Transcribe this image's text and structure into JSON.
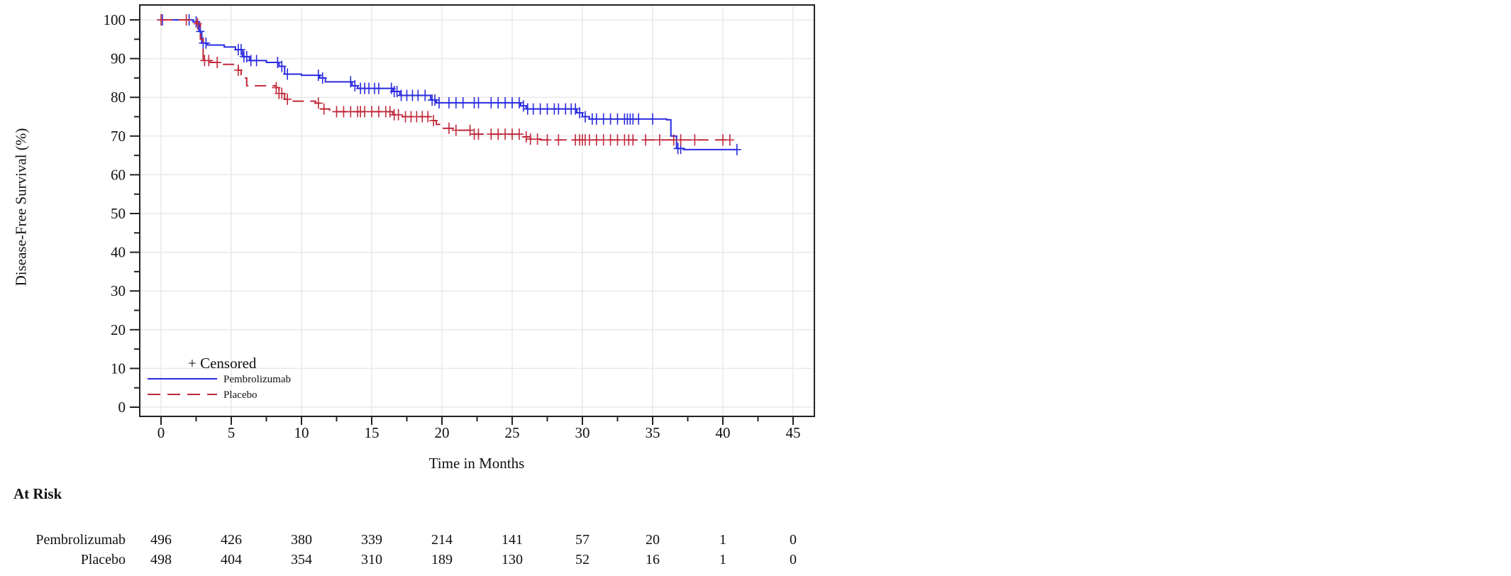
{
  "chart_data": {
    "type": "line",
    "subtype": "kaplan-meier",
    "title": "",
    "xlabel": "Time in Months",
    "ylabel": "Disease-Free Survival (%)",
    "xlim": [
      0,
      45
    ],
    "ylim": [
      0,
      100
    ],
    "x_ticks": [
      "0",
      "5",
      "10",
      "15",
      "20",
      "25",
      "30",
      "35",
      "40",
      "45"
    ],
    "y_ticks": [
      "0",
      "10",
      "20",
      "30",
      "40",
      "50",
      "60",
      "70",
      "80",
      "90",
      "100"
    ],
    "grid": true,
    "legend": {
      "position": "bottom-left",
      "censored_label": "+ Censored"
    },
    "series": [
      {
        "name": "Pembrolizumab",
        "color": "#2a2ae0",
        "style": "solid",
        "steps": [
          [
            0,
            100
          ],
          [
            2.3,
            99.5
          ],
          [
            2.7,
            97
          ],
          [
            2.9,
            94
          ],
          [
            3.3,
            93.5
          ],
          [
            4.5,
            93
          ],
          [
            5.3,
            92.3
          ],
          [
            5.8,
            90.5
          ],
          [
            6.3,
            89.5
          ],
          [
            7.5,
            89
          ],
          [
            8.4,
            88
          ],
          [
            8.8,
            86
          ],
          [
            10,
            85.7
          ],
          [
            11.3,
            85
          ],
          [
            11.7,
            84
          ],
          [
            13.6,
            83
          ],
          [
            14,
            82.3
          ],
          [
            16.5,
            81.5
          ],
          [
            17,
            80.5
          ],
          [
            19.2,
            79.3
          ],
          [
            19.6,
            78.6
          ],
          [
            25.6,
            77.8
          ],
          [
            26,
            77
          ],
          [
            29.6,
            76
          ],
          [
            30,
            75
          ],
          [
            30.5,
            74.4
          ],
          [
            36,
            74.2
          ],
          [
            36.3,
            70
          ],
          [
            36.7,
            66.8
          ],
          [
            37.2,
            66.5
          ]
        ],
        "end": 41,
        "censored": [
          0.1,
          2,
          2.5,
          2.8,
          3,
          3.2,
          5.5,
          5.7,
          5.9,
          6.1,
          6.4,
          6.8,
          8.3,
          8.6,
          9,
          11.2,
          11.5,
          13.5,
          13.8,
          14.2,
          14.5,
          14.8,
          15.2,
          15.5,
          16.4,
          16.6,
          16.8,
          17.1,
          17.5,
          17.9,
          18.3,
          18.8,
          19.3,
          19.5,
          19.8,
          20.5,
          21,
          21.5,
          22.3,
          22.6,
          23.5,
          24,
          24.5,
          25,
          25.5,
          25.8,
          26.1,
          26.5,
          27,
          27.5,
          28,
          28.3,
          28.8,
          29.2,
          29.5,
          29.8,
          30.2,
          30.7,
          31,
          31.5,
          32,
          32.5,
          33,
          33.2,
          33.4,
          33.6,
          34,
          35,
          36.8,
          37,
          41
        ]
      },
      {
        "name": "Placebo",
        "color": "#c0283a",
        "style": "dashed",
        "steps": [
          [
            0,
            100
          ],
          [
            2.5,
            99
          ],
          [
            2.8,
            95
          ],
          [
            3.0,
            89.5
          ],
          [
            3.5,
            89
          ],
          [
            4.2,
            88.5
          ],
          [
            5.5,
            87
          ],
          [
            5.7,
            85
          ],
          [
            6.1,
            83
          ],
          [
            8.2,
            82.5
          ],
          [
            8.4,
            81
          ],
          [
            8.8,
            79.5
          ],
          [
            9.3,
            79
          ],
          [
            11.0,
            78.5
          ],
          [
            11.3,
            77
          ],
          [
            12,
            76.3
          ],
          [
            16.5,
            75.5
          ],
          [
            17.2,
            75
          ],
          [
            19.2,
            74
          ],
          [
            19.6,
            73
          ],
          [
            20,
            72
          ],
          [
            21,
            71.5
          ],
          [
            22.2,
            70.5
          ],
          [
            25.8,
            69.8
          ],
          [
            26.3,
            69.2
          ],
          [
            27,
            69
          ]
        ],
        "end": 40.7,
        "censored": [
          0,
          1.8,
          2.6,
          3.1,
          3.4,
          4,
          5.5,
          8.2,
          8.4,
          8.6,
          9,
          11.2,
          11.6,
          12.5,
          13,
          13.5,
          14,
          14.2,
          14.5,
          15,
          15.5,
          16,
          16.3,
          16.6,
          16.9,
          17.4,
          17.8,
          18.2,
          18.6,
          19,
          19.4,
          20.5,
          21,
          22,
          22.3,
          22.6,
          23.5,
          24,
          24.5,
          25,
          25.5,
          26,
          26.3,
          26.8,
          27.5,
          28.3,
          29.5,
          29.8,
          30,
          30.2,
          30.5,
          31,
          31.5,
          32,
          32.5,
          33,
          33.3,
          33.6,
          34.5,
          35.5,
          36.5,
          37,
          38,
          40,
          40.5
        ]
      }
    ],
    "at_risk": {
      "title": "At Risk",
      "times": [
        0,
        5,
        10,
        15,
        20,
        25,
        30,
        35,
        40,
        45
      ],
      "rows": [
        {
          "label": "Pembrolizumab",
          "values": [
            "496",
            "426",
            "380",
            "339",
            "214",
            "141",
            "57",
            "20",
            "1",
            "0"
          ]
        },
        {
          "label": "Placebo",
          "values": [
            "498",
            "404",
            "354",
            "310",
            "189",
            "130",
            "52",
            "16",
            "1",
            "0"
          ]
        }
      ]
    }
  }
}
